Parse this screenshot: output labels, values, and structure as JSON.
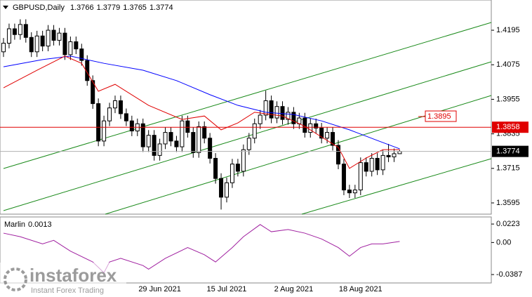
{
  "chart_data": [
    {
      "type": "candlestick",
      "title": "GBPUSD,Daily",
      "categories": [
        null,
        null,
        null,
        null,
        null,
        null,
        null,
        null,
        null,
        null,
        null,
        null,
        null,
        null,
        null,
        null,
        null,
        null,
        null,
        null,
        null,
        null,
        null,
        null,
        null,
        null,
        null,
        null,
        "29 Jun 2021",
        null,
        null,
        null,
        null,
        null,
        null,
        null,
        null,
        null,
        null,
        null,
        "15 Jul 2021",
        null,
        null,
        null,
        null,
        null,
        null,
        null,
        null,
        null,
        null,
        null,
        "2 Aug 2021",
        null,
        null,
        null,
        null,
        null,
        null,
        null,
        null,
        null,
        null,
        null,
        "18 Aug 2021",
        null,
        null,
        null,
        null,
        null,
        null,
        null
      ],
      "open": [
        1.412,
        1.415,
        1.42,
        1.418,
        1.4215,
        1.417,
        1.412,
        1.4175,
        1.414,
        1.4195,
        1.416,
        1.4185,
        1.411,
        1.4155,
        1.413,
        1.409,
        1.402,
        1.394,
        1.381,
        1.388,
        1.3925,
        1.395,
        1.3905,
        1.388,
        1.3845,
        1.387,
        1.379,
        1.383,
        1.376,
        1.38,
        1.384,
        1.381,
        1.379,
        1.388,
        1.384,
        1.377,
        1.386,
        1.382,
        1.375,
        1.368,
        1.3615,
        1.3665,
        1.373,
        1.3705,
        1.378,
        1.382,
        1.387,
        1.39,
        1.395,
        1.389,
        1.393,
        1.3885,
        1.391,
        1.387,
        1.389,
        1.384,
        1.387,
        1.3855,
        1.382,
        1.384,
        1.3795,
        1.373,
        1.364,
        1.363,
        1.364,
        1.3735,
        1.3705,
        1.375,
        1.371,
        1.376,
        1.3755,
        1.3766
      ],
      "high": [
        1.4168,
        1.4218,
        1.4218,
        1.4233,
        1.4233,
        1.4188,
        1.4193,
        1.4193,
        1.4213,
        1.4213,
        1.4203,
        1.4203,
        1.4173,
        1.4173,
        1.4148,
        1.4108,
        1.4038,
        1.3958,
        1.3898,
        1.3943,
        1.3968,
        1.3968,
        1.3923,
        1.3898,
        1.3888,
        1.3888,
        1.3848,
        1.3848,
        1.3818,
        1.3858,
        1.3858,
        1.3828,
        1.3898,
        1.3898,
        1.3858,
        1.3878,
        1.3878,
        1.3838,
        1.3768,
        1.3698,
        1.3683,
        1.3748,
        1.3748,
        1.3798,
        1.3838,
        1.3888,
        1.3918,
        1.3985,
        1.3968,
        1.3948,
        1.3948,
        1.3928,
        1.3928,
        1.3908,
        1.3908,
        1.3888,
        1.3888,
        1.3873,
        1.3858,
        1.3858,
        1.3813,
        1.3748,
        1.3658,
        1.3658,
        1.3753,
        1.3753,
        1.3768,
        1.3768,
        1.3778,
        1.38,
        1.3784,
        1.3779
      ],
      "low": [
        1.4102,
        1.4132,
        1.4162,
        1.4162,
        1.4152,
        1.4102,
        1.4102,
        1.4122,
        1.4122,
        1.4142,
        1.4142,
        1.4092,
        1.4092,
        1.4112,
        1.4072,
        1.4002,
        1.3922,
        1.3792,
        1.3792,
        1.3862,
        1.3907,
        1.3887,
        1.3862,
        1.3827,
        1.3827,
        1.3772,
        1.3772,
        1.3742,
        1.3742,
        1.3782,
        1.3792,
        1.3772,
        1.3772,
        1.3822,
        1.3752,
        1.3752,
        1.3802,
        1.3732,
        1.3662,
        1.3572,
        1.3597,
        1.3647,
        1.3687,
        1.3687,
        1.3762,
        1.3802,
        1.3852,
        1.3882,
        1.3872,
        1.3872,
        1.3867,
        1.3867,
        1.3852,
        1.3852,
        1.3822,
        1.3822,
        1.3837,
        1.3802,
        1.3802,
        1.3777,
        1.3712,
        1.3622,
        1.3612,
        1.3612,
        1.3622,
        1.3687,
        1.3687,
        1.3692,
        1.3692,
        1.3737,
        1.3737,
        1.3765
      ],
      "close": [
        1.415,
        1.42,
        1.418,
        1.4215,
        1.417,
        1.412,
        1.4175,
        1.414,
        1.4195,
        1.416,
        1.4185,
        1.411,
        1.4155,
        1.413,
        1.409,
        1.402,
        1.394,
        1.381,
        1.388,
        1.3925,
        1.395,
        1.3905,
        1.388,
        1.3845,
        1.387,
        1.379,
        1.383,
        1.376,
        1.38,
        1.384,
        1.381,
        1.379,
        1.388,
        1.384,
        1.377,
        1.386,
        1.382,
        1.375,
        1.368,
        1.3615,
        1.3665,
        1.373,
        1.3705,
        1.378,
        1.382,
        1.387,
        1.39,
        1.395,
        1.389,
        1.393,
        1.3885,
        1.391,
        1.387,
        1.389,
        1.384,
        1.387,
        1.3855,
        1.382,
        1.384,
        1.3795,
        1.373,
        1.364,
        1.363,
        1.364,
        1.3735,
        1.3705,
        1.375,
        1.371,
        1.376,
        1.3755,
        1.3766,
        1.3774
      ],
      "up_color": "#ffffff",
      "down_color": "#000000",
      "overlays": [
        {
          "color": "#0000ff",
          "x": [
            0,
            7,
            12,
            18,
            25,
            31,
            37,
            42,
            47,
            52,
            57,
            62,
            67,
            71
          ],
          "values": [
            1.4068,
            1.4093,
            1.4105,
            1.408,
            1.4056,
            1.402,
            1.3971,
            1.3934,
            1.391,
            1.3902,
            1.388,
            1.3849,
            1.3812,
            1.3783
          ]
        },
        {
          "color": "#e00000",
          "x": [
            0,
            6,
            11,
            14,
            17,
            20,
            26,
            32,
            36,
            39,
            42,
            45,
            50,
            54,
            57,
            60,
            62,
            65,
            68,
            71
          ],
          "values": [
            1.3995,
            1.4056,
            1.4105,
            1.408,
            1.3983,
            1.4007,
            1.3934,
            1.3885,
            1.3897,
            1.3849,
            1.3873,
            1.391,
            1.3897,
            1.3861,
            1.3824,
            1.3788,
            1.3715,
            1.3751,
            1.378,
            1.378
          ]
        }
      ],
      "hline": {
        "value": 1.3858,
        "color": "#e00000"
      },
      "annotation": {
        "value": 1.3895,
        "color": "#e00000"
      },
      "ylim": [
        1.3556,
        1.43
      ],
      "yticks": [
        1.4195,
        1.4075,
        1.3955,
        1.3835,
        1.3715,
        1.3595
      ]
    },
    {
      "type": "line",
      "title": "Marlin",
      "color": "#a020a0",
      "x": [
        0,
        3,
        7,
        9,
        12,
        16,
        18,
        19,
        21,
        25,
        26,
        29,
        33,
        36,
        38,
        41,
        43,
        46,
        48,
        51,
        54,
        57,
        60,
        62,
        64,
        66,
        68,
        71
      ],
      "values": [
        0.0113,
        0.007,
        -0.0017,
        0.0026,
        -0.0104,
        -0.0235,
        -0.0365,
        -0.0235,
        -0.0191,
        -0.0278,
        -0.0322,
        -0.0191,
        -0.0061,
        -0.0148,
        -0.0235,
        -0.0061,
        0.007,
        0.0217,
        0.013,
        0.0157,
        0.0113,
        0.0043,
        -0.0061,
        -0.0165,
        -0.0061,
        -0.0017,
        -0.0017,
        0.0013
      ],
      "ylim": [
        -0.048,
        0.03
      ],
      "yticks": [
        0.0223,
        {
          "value": 0,
          "label": "0.00"
        },
        -0.0387
      ]
    }
  ],
  "watermark": {
    "brand": "instaforex",
    "tagline": "Instant Forex Trading"
  }
}
